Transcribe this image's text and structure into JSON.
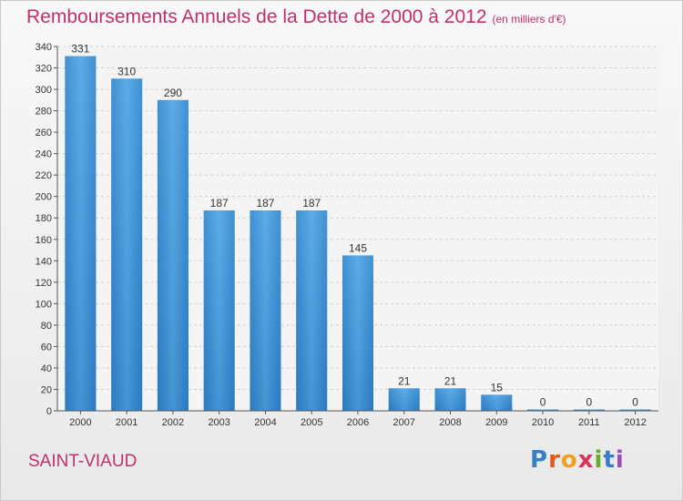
{
  "title": "Remboursements Annuels de la Dette de 2000 à 2012",
  "subtitle": "(en milliers d'€)",
  "town": "SAINT-VIAUD",
  "logo": "Proxiti",
  "chart_data": {
    "type": "bar",
    "categories": [
      "2000",
      "2001",
      "2002",
      "2003",
      "2004",
      "2005",
      "2006",
      "2007",
      "2008",
      "2009",
      "2010",
      "2011",
      "2012"
    ],
    "values": [
      331,
      310,
      290,
      187,
      187,
      187,
      145,
      21,
      21,
      15,
      0,
      0,
      0
    ],
    "ylim": [
      0,
      340
    ],
    "yticks": [
      0,
      20,
      40,
      60,
      80,
      100,
      120,
      140,
      160,
      180,
      200,
      220,
      240,
      260,
      280,
      300,
      320,
      340
    ],
    "bar_color": "#3d8fd6",
    "grid": true
  }
}
